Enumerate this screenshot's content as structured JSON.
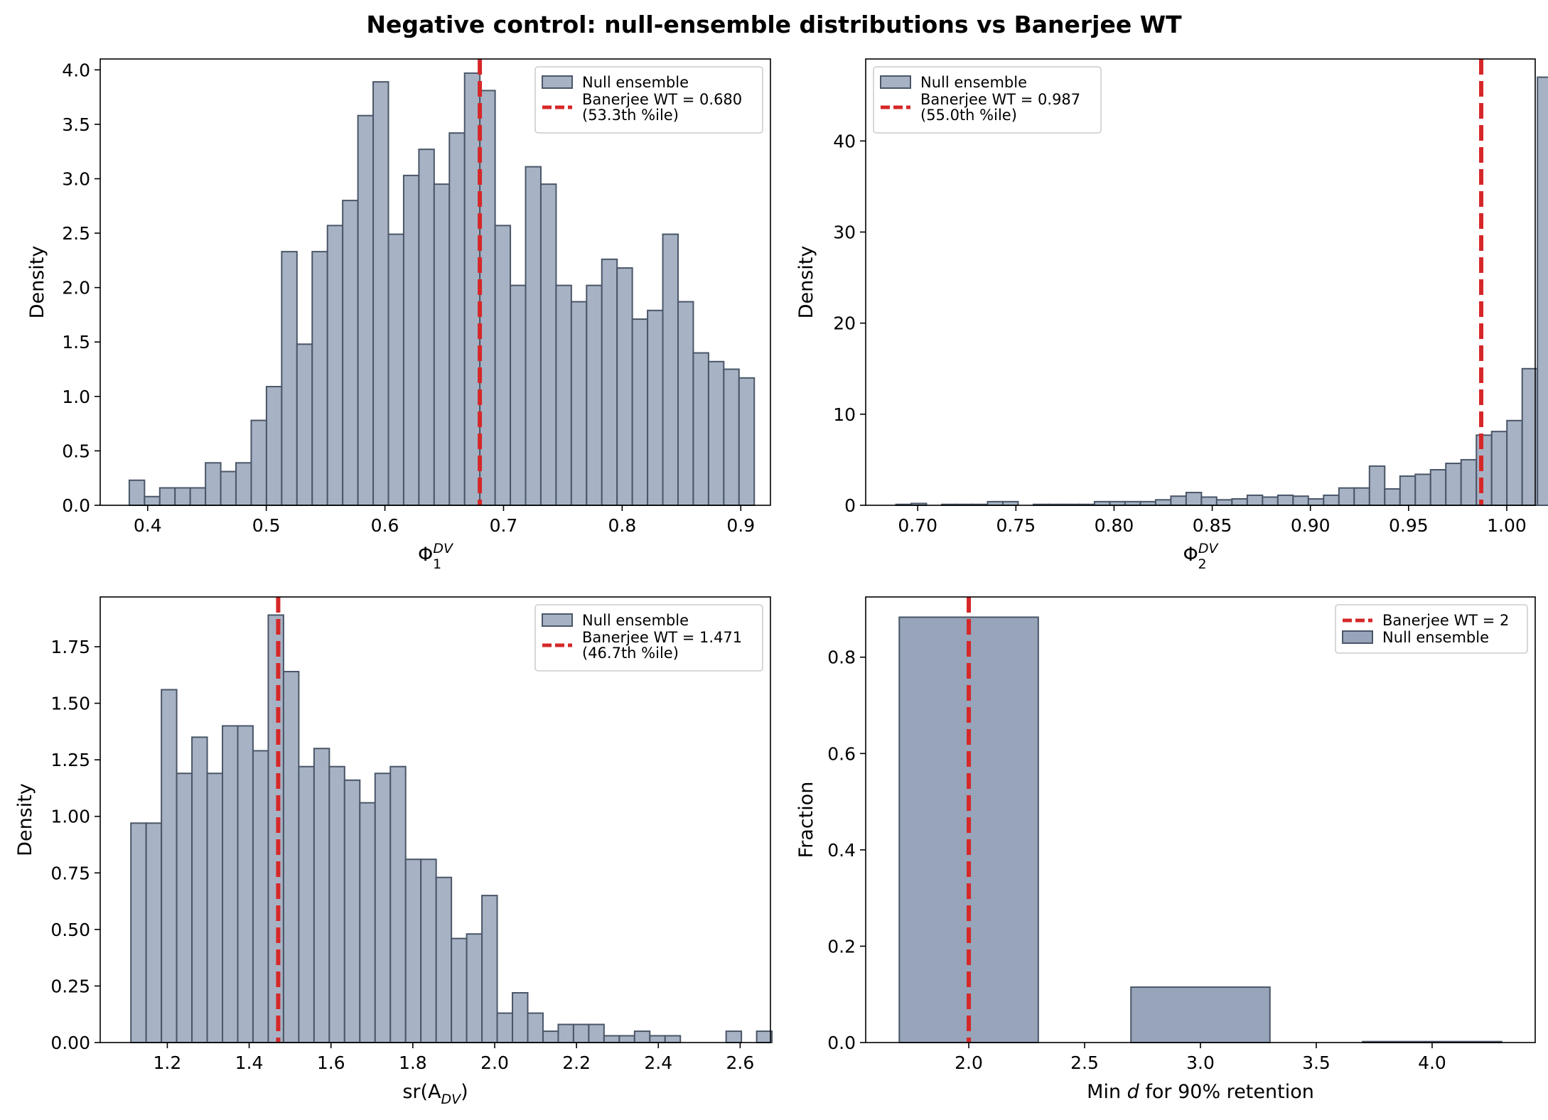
{
  "figure_title": "Negative control: null-ensemble distributions vs Banerjee WT",
  "colors": {
    "bar_fill": "#a7b3c5",
    "bar_fill_dark": "#97a4ba",
    "bar_edge": "#4a5668",
    "marker_line": "#d62728",
    "axis": "#000000"
  },
  "chart_data": [
    {
      "id": "phi1",
      "type": "bar",
      "title": "",
      "xlabel_base": "Φ",
      "xlabel_sub": "1",
      "xlabel_sup": "DV",
      "ylabel": "Density",
      "xlim": [
        0.36,
        0.925
      ],
      "ylim": [
        0,
        4.1
      ],
      "xticks": [
        0.4,
        0.5,
        0.6,
        0.7,
        0.8,
        0.9
      ],
      "xtick_labels": [
        "0.4",
        "0.5",
        "0.6",
        "0.7",
        "0.8",
        "0.9"
      ],
      "yticks": [
        0,
        0.5,
        1.0,
        1.5,
        2.0,
        2.5,
        3.0,
        3.5,
        4.0
      ],
      "ytick_labels": [
        "0.0",
        "0.5",
        "1.0",
        "1.5",
        "2.0",
        "2.5",
        "3.0",
        "3.5",
        "4.0"
      ],
      "bin_start": 0.3845,
      "bin_width": 0.01285,
      "values": [
        0.23,
        0.08,
        0.16,
        0.16,
        0.16,
        0.39,
        0.31,
        0.39,
        0.78,
        1.09,
        2.33,
        1.48,
        2.33,
        2.57,
        2.8,
        3.58,
        3.89,
        2.49,
        3.03,
        3.27,
        2.95,
        3.42,
        3.97,
        3.81,
        2.57,
        2.02,
        3.11,
        2.95,
        2.02,
        1.87,
        2.02,
        2.26,
        2.18,
        1.71,
        1.79,
        2.49,
        1.87,
        1.4,
        1.32,
        1.25,
        1.17
      ],
      "marker_x": 0.68,
      "legend_position": "upper right",
      "legend_null": "Null ensemble",
      "legend_marker_line1": "Banerjee WT = 0.680",
      "legend_marker_line2": "(53.3th %ile)",
      "legend_order": "null-first"
    },
    {
      "id": "phi2",
      "type": "bar",
      "title": "",
      "xlabel_base": "Φ",
      "xlabel_sub": "2",
      "xlabel_sup": "DV",
      "ylabel": "Density",
      "xlim": [
        0.6735,
        1.0145
      ],
      "ylim": [
        0,
        49
      ],
      "xticks": [
        0.7,
        0.75,
        0.8,
        0.85,
        0.9,
        0.95,
        1.0
      ],
      "xtick_labels": [
        "0.70",
        "0.75",
        "0.80",
        "0.85",
        "0.90",
        "0.95",
        "1.00"
      ],
      "yticks": [
        0,
        10,
        20,
        30,
        40
      ],
      "ytick_labels": [
        "0",
        "10",
        "20",
        "30",
        "40"
      ],
      "bin_start": 0.6889,
      "bin_width": 0.00778,
      "values": [
        0.1,
        0.2,
        0,
        0.1,
        0.1,
        0.1,
        0.4,
        0.4,
        0,
        0.1,
        0.1,
        0.1,
        0.1,
        0.4,
        0.4,
        0.4,
        0.4,
        0.6,
        1.0,
        1.4,
        0.9,
        0.6,
        0.7,
        1.1,
        0.9,
        1.1,
        1.0,
        0.7,
        1.1,
        1.9,
        1.9,
        4.3,
        1.8,
        3.2,
        3.4,
        3.9,
        4.6,
        5.0,
        7.7,
        8.1,
        9.3,
        15.0,
        47.0
      ],
      "marker_x": 0.987,
      "legend_position": "upper left",
      "legend_null": "Null ensemble",
      "legend_marker_line1": "Banerjee WT = 0.987",
      "legend_marker_line2": "(55.0th %ile)",
      "legend_order": "null-first"
    },
    {
      "id": "sr",
      "type": "bar",
      "title": "",
      "xlabel_base": "sr(A",
      "xlabel_sub": "DV",
      "xlabel_suffix": ")",
      "ylabel": "Density",
      "xlim": [
        1.036,
        2.674
      ],
      "ylim": [
        0,
        1.97
      ],
      "xticks": [
        1.2,
        1.4,
        1.6,
        1.8,
        2.0,
        2.2,
        2.4,
        2.6
      ],
      "xtick_labels": [
        "1.2",
        "1.4",
        "1.6",
        "1.8",
        "2.0",
        "2.2",
        "2.4",
        "2.6"
      ],
      "yticks": [
        0,
        0.25,
        0.5,
        0.75,
        1.0,
        1.25,
        1.5,
        1.75
      ],
      "ytick_labels": [
        "0.00",
        "0.25",
        "0.50",
        "0.75",
        "1.00",
        "1.25",
        "1.50",
        "1.75"
      ],
      "bin_start": 1.111,
      "bin_width": 0.0373,
      "values": [
        0.97,
        0.97,
        1.56,
        1.19,
        1.35,
        1.19,
        1.4,
        1.4,
        1.29,
        1.89,
        1.64,
        1.22,
        1.3,
        1.22,
        1.16,
        1.06,
        1.19,
        1.22,
        0.81,
        0.81,
        0.73,
        0.46,
        0.48,
        0.65,
        0.13,
        0.22,
        0.13,
        0.05,
        0.08,
        0.08,
        0.08,
        0.03,
        0.03,
        0.05,
        0.03,
        0.03,
        0,
        0,
        0,
        0.05,
        0,
        0.05
      ],
      "marker_x": 1.471,
      "legend_position": "upper right",
      "legend_null": "Null ensemble",
      "legend_marker_line1": "Banerjee WT = 1.471",
      "legend_marker_line2": "(46.7th %ile)",
      "legend_order": "null-first"
    },
    {
      "id": "mind",
      "type": "bar",
      "title": "",
      "xlabel_prefix": "Min ",
      "xlabel_italic": "d",
      "xlabel_suffix": " for 90% retention",
      "ylabel": "Fraction",
      "xlim": [
        1.555,
        4.445
      ],
      "ylim": [
        0,
        0.925
      ],
      "xticks": [
        2.0,
        2.5,
        3.0,
        3.5,
        4.0
      ],
      "xtick_labels": [
        "2.0",
        "2.5",
        "3.0",
        "3.5",
        "4.0"
      ],
      "yticks": [
        0,
        0.2,
        0.4,
        0.6,
        0.8
      ],
      "ytick_labels": [
        "0.0",
        "0.2",
        "0.4",
        "0.6",
        "0.8"
      ],
      "categories": [
        2,
        3,
        4
      ],
      "bar_width": 0.6,
      "values": [
        0.883,
        0.115,
        0.002
      ],
      "marker_x": 2.0,
      "legend_position": "upper right",
      "legend_null": "Null ensemble",
      "legend_marker_line1": "Banerjee WT = 2",
      "legend_order": "marker-first"
    }
  ]
}
